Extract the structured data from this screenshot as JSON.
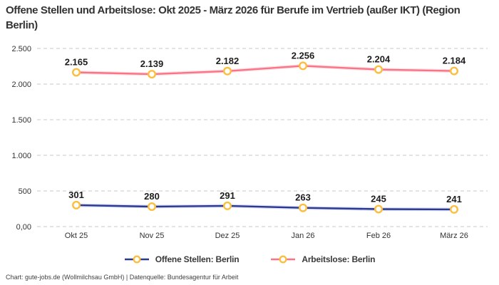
{
  "header": {
    "title": "Offene Stellen und Arbeitslose: Okt 2025 - März 2026 für Berufe im Vertrieb (außer IKT) (Region Berlin)"
  },
  "footer": {
    "text": "Chart: gute-jobs.de (Wollmilchsau GmbH) | Datenquelle: Bundesagentur für Arbeit"
  },
  "legend": {
    "items": [
      {
        "label": "Offene Stellen: Berlin",
        "line_color": "#2b3990"
      },
      {
        "label": "Arbeitslose: Berlin",
        "line_color": "#f97486"
      }
    ]
  },
  "colors": {
    "grid": "#c8c8c8",
    "axis_text": "#333333",
    "data_label": "#1d1d1d",
    "marker_fill": "#ffffff",
    "marker_stroke": "#fcbe3d"
  },
  "chart_data": {
    "type": "line",
    "title": "Offene Stellen und Arbeitslose: Okt 2025 - März 2026 für Berufe im Vertrieb (außer IKT) (Region Berlin)",
    "categories": [
      "Okt 25",
      "Nov 25",
      "Dez 25",
      "Jan 26",
      "Feb 26",
      "März 26"
    ],
    "series": [
      {
        "name": "Offene Stellen: Berlin",
        "values": [
          301,
          280,
          291,
          263,
          245,
          241
        ],
        "labels": [
          "301",
          "280",
          "291",
          "263",
          "245",
          "241"
        ],
        "color": "#2b3990",
        "glow_color": "#b9c1e9"
      },
      {
        "name": "Arbeitslose: Berlin",
        "values": [
          2165,
          2139,
          2182,
          2256,
          2204,
          2184
        ],
        "labels": [
          "2.165",
          "2.139",
          "2.182",
          "2.256",
          "2.204",
          "2.184"
        ],
        "color": "#f97486",
        "glow_color": "#fcc9d2"
      }
    ],
    "y_ticks": [
      {
        "value": 2500,
        "label": "2.500"
      },
      {
        "value": 2000,
        "label": "2.000"
      },
      {
        "value": 1500,
        "label": "1.500"
      },
      {
        "value": 1000,
        "label": "1.000"
      },
      {
        "value": 500,
        "label": "500"
      },
      {
        "value": 0,
        "label": "0,00"
      }
    ],
    "ylim": [
      0,
      2500
    ],
    "xlabel": "",
    "ylabel": "",
    "grid": "horizontal-dashed",
    "legend_position": "bottom",
    "marker": "ring"
  }
}
